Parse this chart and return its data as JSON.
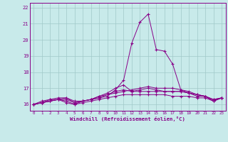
{
  "xlabel": "Windchill (Refroidissement éolien,°C)",
  "bg_color": "#c8eaea",
  "line_color": "#880088",
  "grid_color": "#a0c8c8",
  "xlim": [
    -0.5,
    23.5
  ],
  "ylim": [
    15.6,
    22.3
  ],
  "yticks": [
    16,
    17,
    18,
    19,
    20,
    21,
    22
  ],
  "xticks": [
    0,
    1,
    2,
    3,
    4,
    5,
    6,
    7,
    8,
    9,
    10,
    11,
    12,
    13,
    14,
    15,
    16,
    17,
    18,
    19,
    20,
    21,
    22,
    23
  ],
  "series": [
    [
      16.0,
      16.2,
      16.3,
      16.3,
      16.1,
      16.0,
      16.2,
      16.3,
      16.4,
      16.5,
      16.9,
      17.5,
      19.8,
      21.1,
      21.6,
      19.4,
      19.3,
      18.5,
      16.9,
      16.7,
      16.5,
      16.5,
      16.2,
      16.4
    ],
    [
      16.0,
      16.1,
      16.3,
      16.4,
      16.4,
      16.1,
      16.2,
      16.3,
      16.5,
      16.7,
      17.0,
      17.2,
      16.8,
      16.9,
      17.0,
      16.9,
      16.8,
      16.8,
      16.8,
      16.7,
      16.6,
      16.5,
      16.3,
      16.4
    ],
    [
      16.0,
      16.1,
      16.2,
      16.3,
      16.4,
      16.2,
      16.2,
      16.3,
      16.5,
      16.6,
      16.8,
      16.9,
      16.8,
      16.8,
      16.8,
      16.8,
      16.8,
      16.8,
      16.8,
      16.7,
      16.6,
      16.5,
      16.3,
      16.4
    ],
    [
      16.0,
      16.1,
      16.2,
      16.3,
      16.3,
      16.1,
      16.2,
      16.3,
      16.4,
      16.6,
      16.7,
      16.8,
      16.9,
      17.0,
      17.1,
      17.0,
      17.0,
      17.0,
      16.9,
      16.8,
      16.6,
      16.5,
      16.2,
      16.4
    ],
    [
      16.0,
      16.1,
      16.2,
      16.3,
      16.2,
      16.0,
      16.1,
      16.2,
      16.3,
      16.4,
      16.5,
      16.6,
      16.6,
      16.6,
      16.6,
      16.6,
      16.6,
      16.5,
      16.5,
      16.5,
      16.4,
      16.4,
      16.2,
      16.4
    ]
  ]
}
